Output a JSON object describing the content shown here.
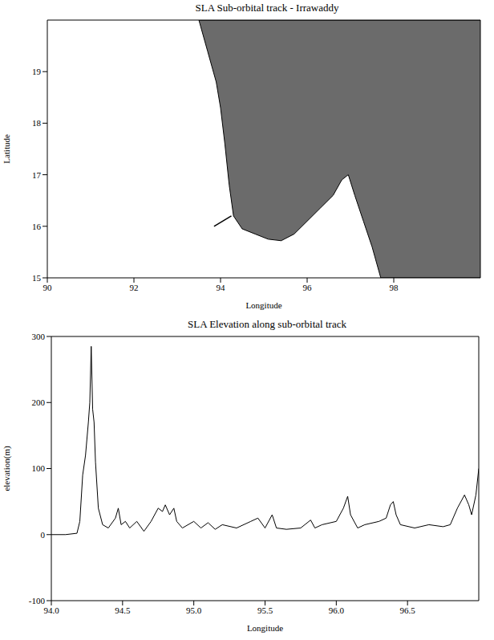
{
  "chart_data": [
    {
      "type": "map",
      "title": "SLA Sub-orbital track - Irrawaddy",
      "x_label": "Longitude",
      "y_label": "Latitude",
      "xlim": [
        90,
        100
      ],
      "ylim": [
        15,
        20
      ],
      "xticks": [
        90,
        92,
        94,
        96,
        98
      ],
      "yticks": [
        15,
        16,
        17,
        18,
        19
      ],
      "land": {
        "color": "#6b6b6b",
        "lon": [
          93.5,
          93.7,
          93.9,
          94.0,
          94.1,
          94.2,
          94.3,
          94.5,
          94.8,
          95.1,
          95.4,
          95.7,
          96.0,
          96.3,
          96.6,
          96.8,
          96.95,
          97.1,
          97.3,
          97.5,
          97.7,
          98.0,
          100
        ],
        "lat_south": [
          20,
          19.4,
          18.8,
          18.3,
          17.6,
          16.8,
          16.2,
          15.95,
          15.85,
          15.75,
          15.72,
          15.85,
          16.1,
          16.35,
          16.6,
          16.9,
          17.0,
          16.6,
          16.1,
          15.6,
          15.0,
          15.0,
          15.0
        ]
      },
      "track": {
        "color": "#000000",
        "x": [
          93.85,
          94.25
        ],
        "y": [
          16.0,
          16.2
        ]
      }
    },
    {
      "type": "line",
      "title": "SLA Elevation along sub-orbital track",
      "x_label": "Longitude",
      "y_label": "elevation(m)",
      "xlim": [
        94,
        97
      ],
      "ylim": [
        -100,
        300
      ],
      "xticks": [
        {
          "value": 94,
          "label": "94.0"
        },
        94.5,
        {
          "value": 95,
          "label": "95.0"
        },
        95.5,
        {
          "value": 96,
          "label": "96.0"
        },
        96.5
      ],
      "yticks": [
        -100,
        0,
        100,
        200,
        300
      ],
      "color": "#000000",
      "x": [
        94.0,
        94.1,
        94.18,
        94.2,
        94.22,
        94.24,
        94.26,
        94.27,
        94.28,
        94.29,
        94.3,
        94.31,
        94.33,
        94.36,
        94.4,
        94.45,
        94.47,
        94.49,
        94.52,
        94.55,
        94.6,
        94.65,
        94.7,
        94.75,
        94.78,
        94.8,
        94.83,
        94.86,
        94.88,
        94.92,
        95.0,
        95.05,
        95.1,
        95.15,
        95.2,
        95.3,
        95.4,
        95.45,
        95.5,
        95.55,
        95.58,
        95.65,
        95.75,
        95.82,
        95.85,
        95.9,
        96.0,
        96.05,
        96.08,
        96.1,
        96.15,
        96.2,
        96.3,
        96.35,
        96.38,
        96.4,
        96.42,
        96.45,
        96.55,
        96.65,
        96.75,
        96.8,
        96.85,
        96.9,
        96.93,
        96.95,
        96.98,
        97.0
      ],
      "values": [
        0,
        0,
        2,
        20,
        90,
        120,
        170,
        200,
        285,
        190,
        170,
        110,
        40,
        15,
        10,
        25,
        40,
        15,
        20,
        10,
        20,
        5,
        20,
        40,
        35,
        45,
        30,
        40,
        20,
        10,
        20,
        10,
        18,
        8,
        15,
        10,
        20,
        25,
        10,
        30,
        10,
        8,
        10,
        22,
        10,
        15,
        20,
        40,
        58,
        30,
        10,
        15,
        20,
        25,
        45,
        50,
        30,
        15,
        10,
        15,
        12,
        15,
        40,
        60,
        45,
        30,
        60,
        100
      ]
    }
  ]
}
